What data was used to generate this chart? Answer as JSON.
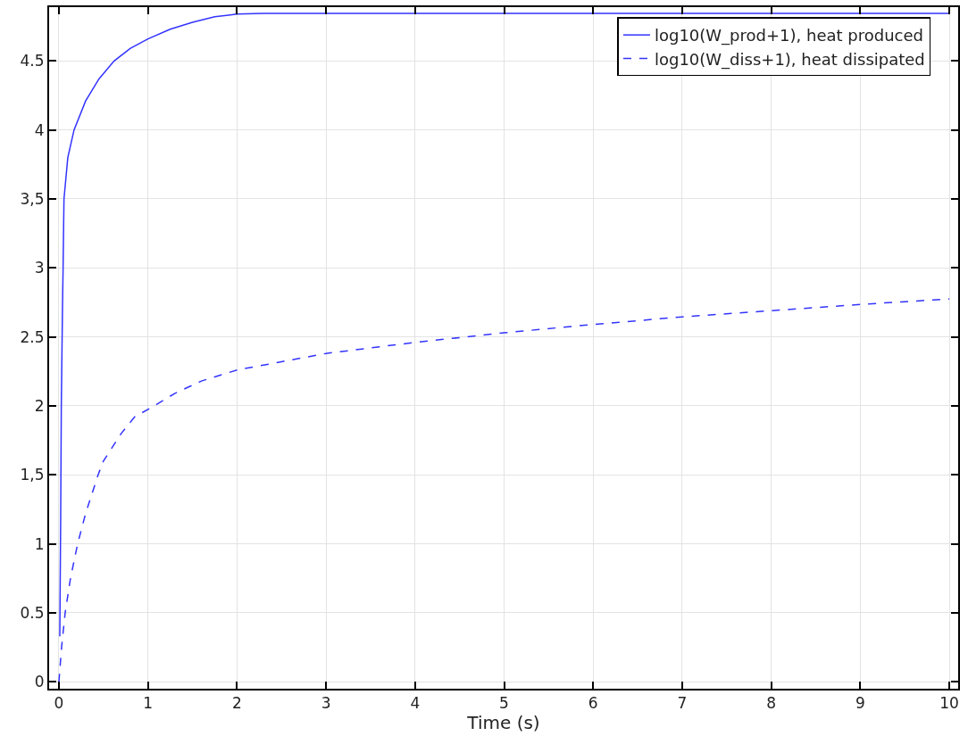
{
  "chart_data": {
    "type": "line",
    "xlabel": "Time (s)",
    "xlim": [
      -0.11,
      10.1
    ],
    "ylim": [
      -0.05,
      4.89
    ],
    "xticks": [
      0,
      1,
      2,
      3,
      4,
      5,
      6,
      7,
      8,
      9,
      10
    ],
    "yticks": [
      0,
      0.5,
      1,
      {
        "value": 1.5,
        "label": "1,5"
      },
      2,
      2.5,
      3,
      {
        "value": 3.5,
        "label": "3,5"
      },
      4,
      4.5
    ],
    "grid": true,
    "legend": "top right",
    "marker": "none",
    "series": [
      {
        "name": "log10(W_prod+1), heat produced",
        "color": "#3333ff",
        "line_style": "solid",
        "x": [
          0.01,
          0.02,
          0.027,
          0.04,
          0.047,
          0.057,
          0.1,
          0.17,
          0.3,
          0.45,
          0.62,
          0.8,
          1,
          1.25,
          1.5,
          1.75,
          2,
          2.3,
          3,
          4,
          5,
          6,
          7,
          8,
          9,
          10
        ],
        "values": [
          0.33,
          1.2,
          2.0,
          2.7,
          3.0,
          3.5,
          3.8,
          4.0,
          4.21,
          4.37,
          4.5,
          4.59,
          4.66,
          4.73,
          4.78,
          4.82,
          4.84,
          4.845,
          4.845,
          4.845,
          4.845,
          4.845,
          4.845,
          4.845,
          4.845,
          4.845
        ]
      },
      {
        "name": "log10(W_diss+1), heat dissipated",
        "color": "#3333ff",
        "line_style": "dashed",
        "x": [
          0,
          0.03,
          0.07,
          0.13,
          0.21,
          0.3,
          0.44,
          0.5,
          0.7,
          0.85,
          1.07,
          1.3,
          1.6,
          2,
          2.5,
          3,
          4,
          5,
          6,
          7,
          8,
          9,
          10
        ],
        "values": [
          0,
          0.25,
          0.5,
          0.75,
          1.0,
          1.22,
          1.5,
          1.6,
          1.8,
          1.92,
          2.0,
          2.09,
          2.18,
          2.26,
          2.32,
          2.38,
          2.46,
          2.53,
          2.59,
          2.645,
          2.69,
          2.735,
          2.775
        ]
      }
    ]
  }
}
